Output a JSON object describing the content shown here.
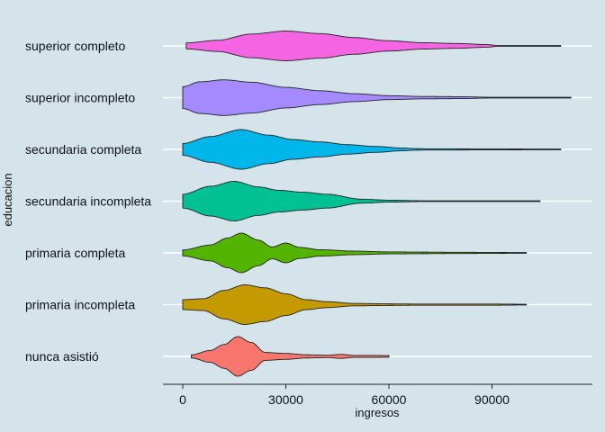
{
  "chart_data": {
    "type": "violin",
    "orientation": "horizontal",
    "xlabel": "ingresos",
    "ylabel": "educacion",
    "xlim": [
      -4000,
      118000
    ],
    "x_ticks": [
      0,
      30000,
      60000,
      90000
    ],
    "x_tick_labels": [
      "0",
      "30000",
      "60000",
      "90000"
    ],
    "grid": "horizontal major lines (white), no vertical lines",
    "legend": "none",
    "background_color": "#d5e4eb",
    "outline_color": "#222222",
    "series": [
      {
        "name": "superior completo",
        "color": "#f564e3",
        "min": 1000,
        "max": 110000,
        "density": [
          [
            1000,
            0.15
          ],
          [
            10000,
            0.28
          ],
          [
            20000,
            0.6
          ],
          [
            30000,
            0.75
          ],
          [
            40000,
            0.62
          ],
          [
            50000,
            0.42
          ],
          [
            60000,
            0.26
          ],
          [
            70000,
            0.16
          ],
          [
            80000,
            0.12
          ],
          [
            88000,
            0.07
          ],
          [
            92000,
            0.02
          ],
          [
            100000,
            0.02
          ],
          [
            110000,
            0.02
          ]
        ]
      },
      {
        "name": "superior incompleto",
        "color": "#a58aff",
        "min": 0,
        "max": 113000,
        "density": [
          [
            0,
            0.55
          ],
          [
            5000,
            0.8
          ],
          [
            12000,
            0.9
          ],
          [
            20000,
            0.78
          ],
          [
            30000,
            0.52
          ],
          [
            40000,
            0.35
          ],
          [
            50000,
            0.2
          ],
          [
            60000,
            0.1
          ],
          [
            70000,
            0.06
          ],
          [
            80000,
            0.05
          ],
          [
            90000,
            0.02
          ],
          [
            113000,
            0.02
          ]
        ]
      },
      {
        "name": "secundaria completa",
        "color": "#00b6eb",
        "min": 0,
        "max": 110000,
        "density": [
          [
            0,
            0.3
          ],
          [
            8000,
            0.65
          ],
          [
            17000,
            1.0
          ],
          [
            25000,
            0.72
          ],
          [
            32000,
            0.5
          ],
          [
            40000,
            0.38
          ],
          [
            48000,
            0.24
          ],
          [
            56000,
            0.15
          ],
          [
            64000,
            0.07
          ],
          [
            68000,
            0.04
          ],
          [
            72000,
            0.03
          ],
          [
            110000,
            0.02
          ]
        ]
      },
      {
        "name": "secundaria incompleta",
        "color": "#00c094",
        "min": 0,
        "max": 104000,
        "density": [
          [
            0,
            0.35
          ],
          [
            8000,
            0.75
          ],
          [
            15000,
            1.0
          ],
          [
            22000,
            0.72
          ],
          [
            28000,
            0.55
          ],
          [
            35000,
            0.45
          ],
          [
            42000,
            0.35
          ],
          [
            52000,
            0.1
          ],
          [
            60000,
            0.05
          ],
          [
            70000,
            0.02
          ],
          [
            104000,
            0.02
          ]
        ]
      },
      {
        "name": "primaria completa",
        "color": "#53b400",
        "min": 0,
        "max": 100000,
        "density": [
          [
            0,
            0.15
          ],
          [
            8000,
            0.4
          ],
          [
            13000,
            0.75
          ],
          [
            17000,
            1.0
          ],
          [
            22000,
            0.65
          ],
          [
            26000,
            0.3
          ],
          [
            30000,
            0.5
          ],
          [
            34000,
            0.28
          ],
          [
            40000,
            0.16
          ],
          [
            50000,
            0.09
          ],
          [
            60000,
            0.05
          ],
          [
            70000,
            0.04
          ],
          [
            80000,
            0.03
          ],
          [
            100000,
            0.02
          ]
        ]
      },
      {
        "name": "primaria incompleta",
        "color": "#c49a00",
        "min": 0,
        "max": 100000,
        "density": [
          [
            0,
            0.25
          ],
          [
            6000,
            0.3
          ],
          [
            12000,
            0.72
          ],
          [
            18000,
            1.0
          ],
          [
            24000,
            0.85
          ],
          [
            30000,
            0.55
          ],
          [
            36000,
            0.25
          ],
          [
            42000,
            0.15
          ],
          [
            50000,
            0.06
          ],
          [
            60000,
            0.04
          ],
          [
            70000,
            0.03
          ],
          [
            80000,
            0.03
          ],
          [
            90000,
            0.03
          ],
          [
            100000,
            0.02
          ]
        ]
      },
      {
        "name": "nunca asistió",
        "color": "#f8766d",
        "min": 2500,
        "max": 60000,
        "density": [
          [
            2500,
            0.08
          ],
          [
            8000,
            0.3
          ],
          [
            12000,
            0.6
          ],
          [
            16000,
            1.0
          ],
          [
            20000,
            0.7
          ],
          [
            24000,
            0.2
          ],
          [
            30000,
            0.15
          ],
          [
            36000,
            0.08
          ],
          [
            42000,
            0.06
          ],
          [
            46000,
            0.1
          ],
          [
            50000,
            0.05
          ],
          [
            56000,
            0.05
          ],
          [
            60000,
            0.04
          ]
        ]
      }
    ]
  }
}
